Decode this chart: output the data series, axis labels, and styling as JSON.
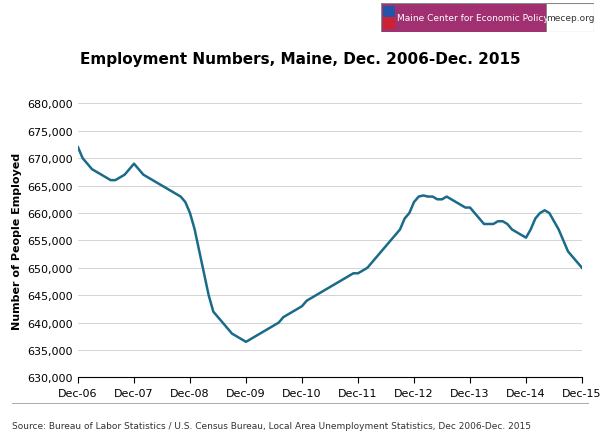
{
  "title": "Employment Numbers, Maine, Dec. 2006-Dec. 2015",
  "ylabel": "Number of People Employed",
  "source_text": "Source: Bureau of Labor Statistics / U.S. Census Bureau, Local Area Unemployment Statistics, Dec 2006-Dec. 2015",
  "logo_text1": "Maine Center for Economic Policy",
  "logo_text2": "mecep.org",
  "ylim": [
    630000,
    680000
  ],
  "yticks": [
    630000,
    635000,
    640000,
    645000,
    650000,
    655000,
    660000,
    665000,
    670000,
    675000,
    680000
  ],
  "xtick_labels": [
    "Dec-06",
    "Dec-07",
    "Dec-08",
    "Dec-09",
    "Dec-10",
    "Dec-11",
    "Dec-12",
    "Dec-13",
    "Dec-14",
    "Dec-15"
  ],
  "line_color": "#1a6b8a",
  "line_width": 1.8,
  "background_color": "#ffffff",
  "grid_color": "#cccccc",
  "logo_bg_color": "#a03070",
  "months_data": [
    672000,
    670000,
    669000,
    668000,
    667500,
    667000,
    666500,
    666000,
    666000,
    666500,
    667000,
    668000,
    669000,
    668000,
    667000,
    666500,
    666000,
    665500,
    665000,
    664500,
    664000,
    663500,
    663000,
    662000,
    660000,
    657000,
    653000,
    649000,
    645000,
    642000,
    641000,
    640000,
    639000,
    638000,
    637500,
    637000,
    636500,
    637000,
    637500,
    638000,
    638500,
    639000,
    639500,
    640000,
    641000,
    641500,
    642000,
    642500,
    643000,
    644000,
    644500,
    645000,
    645500,
    646000,
    646500,
    647000,
    647500,
    648000,
    648500,
    649000,
    649000,
    649500,
    650000,
    651000,
    652000,
    653000,
    654000,
    655000,
    656000,
    657000,
    659000,
    660000,
    662000,
    663000,
    663200,
    663000,
    663000,
    662500,
    662500,
    663000,
    662500,
    662000,
    661500,
    661000,
    661000,
    660000,
    659000,
    658000,
    658000,
    658000,
    658500,
    658500,
    658000,
    657000,
    656500,
    656000,
    655500,
    657000,
    659000,
    660000,
    660500,
    660000,
    658500,
    657000,
    655000,
    653000,
    652000,
    651000,
    650000
  ]
}
